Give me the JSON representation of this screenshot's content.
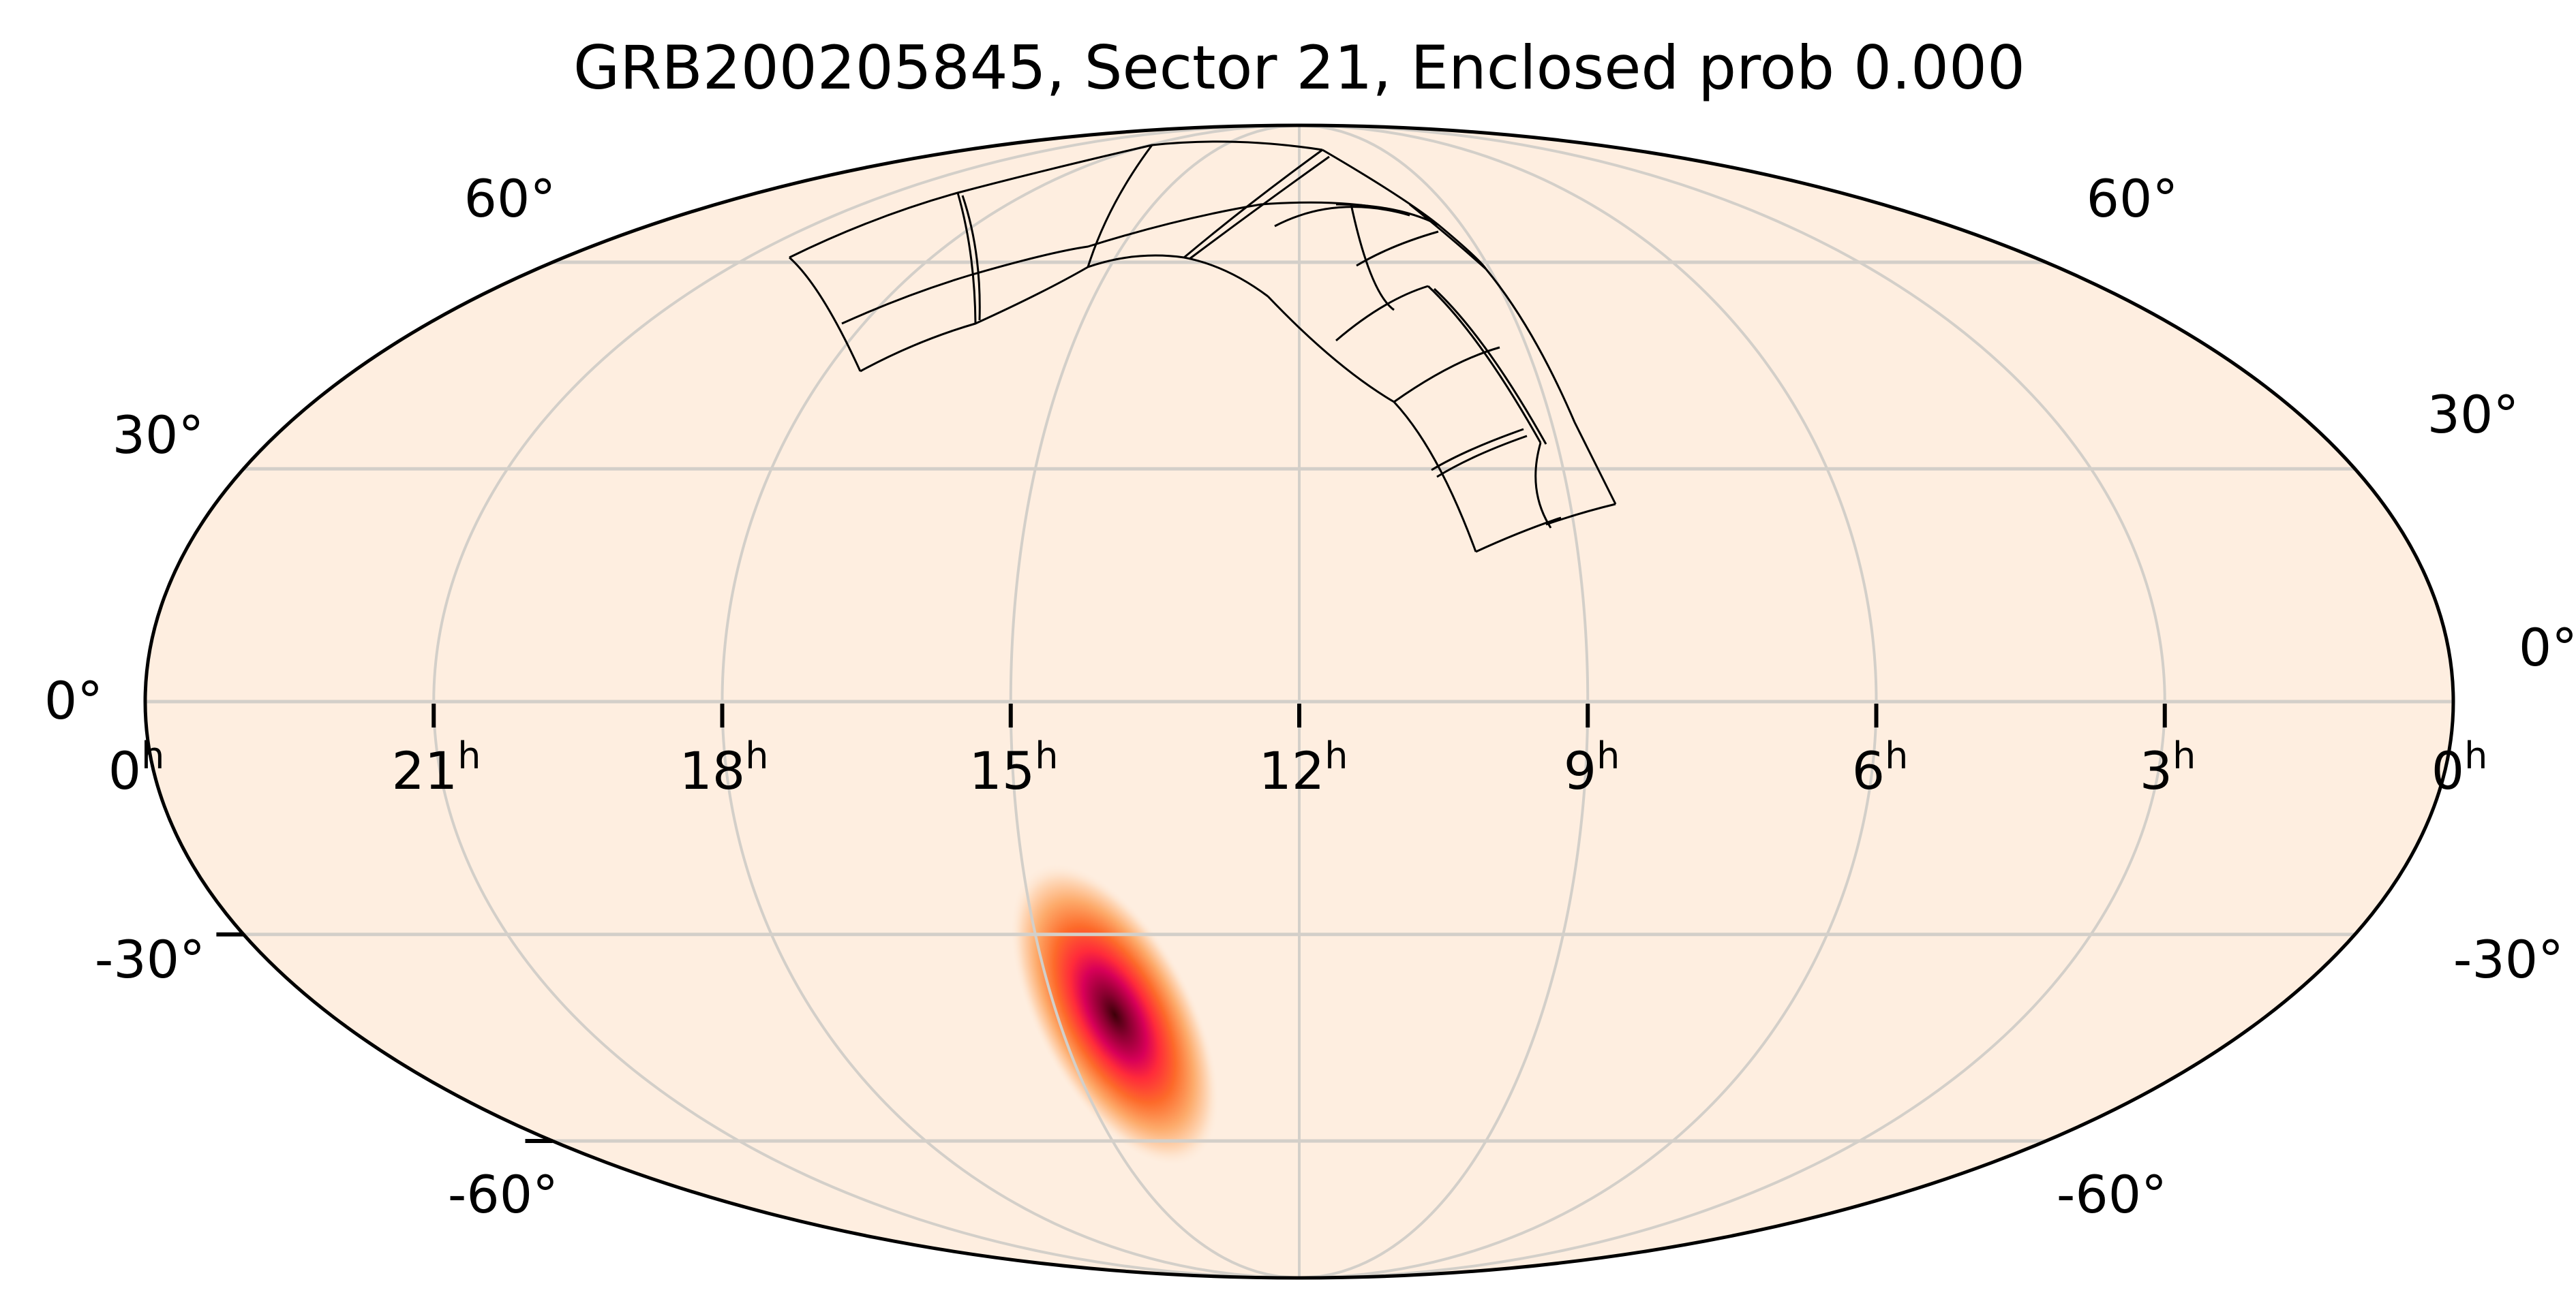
{
  "figure": {
    "title": "GRB200205845, Sector 21, Enclosed prob 0.000",
    "background_color": "#ffffff",
    "map_fill_color": "#feeee0",
    "grid_color": "#d3cfc9",
    "frame_color": "#000000",
    "tile_color": "#000000"
  },
  "chart_data": {
    "type": "heatmap",
    "projection": "mollweide",
    "title": "GRB200205845, Sector 21, Enclosed prob 0.000",
    "xlabel": "",
    "ylabel": "",
    "grid": true,
    "ra_ticks": [
      {
        "value_h": 24,
        "label": "0",
        "unit": "h"
      },
      {
        "value_h": 21,
        "label": "21",
        "unit": "h"
      },
      {
        "value_h": 18,
        "label": "18",
        "unit": "h"
      },
      {
        "value_h": 15,
        "label": "15",
        "unit": "h"
      },
      {
        "value_h": 12,
        "label": "12",
        "unit": "h"
      },
      {
        "value_h": 9,
        "label": "9",
        "unit": "h"
      },
      {
        "value_h": 6,
        "label": "6",
        "unit": "h"
      },
      {
        "value_h": 3,
        "label": "3",
        "unit": "h"
      },
      {
        "value_h": 0,
        "label": "0",
        "unit": "h"
      }
    ],
    "dec_ticks": [
      {
        "value": 60,
        "label": "60°"
      },
      {
        "value": 30,
        "label": "30°"
      },
      {
        "value": 0,
        "label": "0°"
      },
      {
        "value": -30,
        "label": "-30°"
      },
      {
        "value": -60,
        "label": "-60°"
      }
    ],
    "ra_range_h": [
      24,
      0
    ],
    "dec_range": [
      -90,
      90
    ],
    "localization": {
      "description": "GRB probability skymap, single elongated peak",
      "peak_ra_h": 14.2,
      "peak_dec": -41,
      "extent_dec": [
        -58,
        -22
      ],
      "colormap": "hot_r-like (cream -> orange -> red -> magenta -> dark maroon)",
      "colors": [
        "#feeee0",
        "#fdbf8f",
        "#fd7f3b",
        "#ff2b2b",
        "#e0005a",
        "#8a0030",
        "#3d0008"
      ]
    },
    "tess_sector": {
      "sector": 21,
      "enclosed_prob": 0.0,
      "camera_count": 4,
      "ccds_per_camera": 4
    }
  },
  "labels": {
    "enclosed_prob": "0.000",
    "sector": "21",
    "grb": "GRB200205845"
  }
}
